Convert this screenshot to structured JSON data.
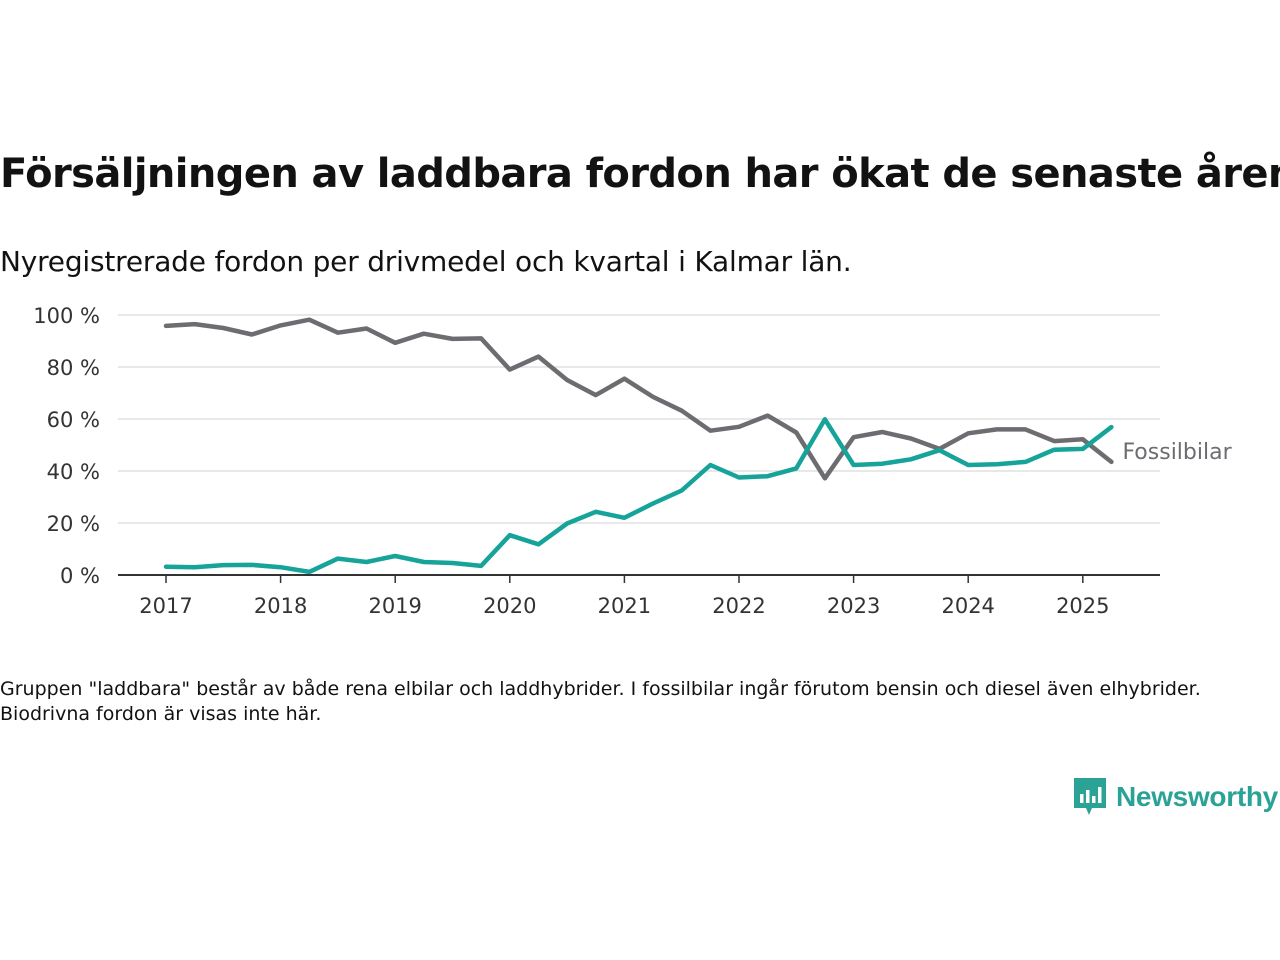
{
  "title": "Försäljningen av laddbara fordon har ökat de senaste åren",
  "subtitle": "Nyregistrerade fordon per drivmedel och kvartal i Kalmar län.",
  "note": "Gruppen \"laddbara\" består av både rena elbilar och laddhybrider. I fossilbilar ingår förutom bensin och diesel även elhybrider. Biodrivna fordon är visas inte här.",
  "brand": {
    "name": "Newsworthy",
    "icon": "newsworthy-logo-icon",
    "color": "#2aa296"
  },
  "chart_data": {
    "type": "line",
    "title": "Försäljningen av laddbara fordon har ökat de senaste åren",
    "subtitle": "Nyregistrerade fordon per drivmedel och kvartal i Kalmar län.",
    "xlabel": "",
    "ylabel": "",
    "ylim": [
      0,
      100
    ],
    "yticks": [
      0,
      20,
      40,
      60,
      80,
      100
    ],
    "ytick_labels": [
      "0 %",
      "20 %",
      "40 %",
      "60 %",
      "80 %",
      "100 %"
    ],
    "xticks": [
      "2017",
      "2018",
      "2019",
      "2020",
      "2021",
      "2022",
      "2023",
      "2024",
      "2025"
    ],
    "grid": true,
    "x": [
      "2017 K1",
      "2017 K2",
      "2017 K3",
      "2017 K4",
      "2018 K1",
      "2018 K2",
      "2018 K3",
      "2018 K4",
      "2019 K1",
      "2019 K2",
      "2019 K3",
      "2019 K4",
      "2020 K1",
      "2020 K2",
      "2020 K3",
      "2020 K4",
      "2021 K1",
      "2021 K2",
      "2021 K3",
      "2021 K4",
      "2022 K1",
      "2022 K2",
      "2022 K3",
      "2022 K4",
      "2023 K1",
      "2023 K2",
      "2023 K3",
      "2023 K4",
      "2024 K1",
      "2024 K2",
      "2024 K3",
      "2024 K4",
      "2025 K1",
      "2025 K2"
    ],
    "series": [
      {
        "name": "Fossilbilar",
        "color": "#6d6c70",
        "values": [
          95.8,
          96.5,
          95.0,
          92.5,
          96.0,
          98.2,
          93.2,
          94.8,
          89.3,
          92.8,
          90.8,
          91.0,
          79.0,
          84.0,
          75.0,
          69.2,
          75.5,
          68.5,
          63.2,
          55.5,
          57.0,
          61.3,
          54.8,
          37.2,
          53.0,
          55.0,
          52.5,
          48.5,
          54.5,
          56.0,
          56.0,
          51.5,
          52.2,
          43.5
        ]
      },
      {
        "name": "",
        "color": "#16a39a",
        "values": [
          3.2,
          3.0,
          3.8,
          3.9,
          3.0,
          1.2,
          6.3,
          5.0,
          7.3,
          5.0,
          4.6,
          3.5,
          15.3,
          11.8,
          19.8,
          24.3,
          22.0,
          27.5,
          32.5,
          42.3,
          37.5,
          38.0,
          41.0,
          59.9,
          42.3,
          42.8,
          44.5,
          48.0,
          42.3,
          42.6,
          43.5,
          48.2,
          48.5,
          56.9
        ]
      }
    ]
  }
}
